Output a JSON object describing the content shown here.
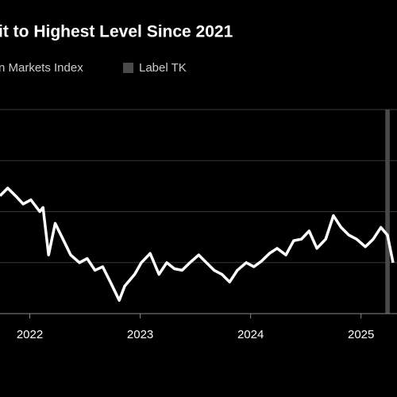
{
  "chart_data": {
    "type": "line",
    "title": "it to Highest Level Since 2021",
    "series": [
      {
        "name": "n Markets Index",
        "color": "#ffffff",
        "x": [
          2021.73,
          2021.8,
          2021.87,
          2021.94,
          2022.01,
          2022.09,
          2022.12,
          2022.17,
          2022.23,
          2022.3,
          2022.37,
          2022.45,
          2022.52,
          2022.59,
          2022.66,
          2022.73,
          2022.81,
          2022.86,
          2022.95,
          2023.01,
          2023.09,
          2023.17,
          2023.24,
          2023.31,
          2023.38,
          2023.45,
          2023.53,
          2023.6,
          2023.67,
          2023.74,
          2023.81,
          2023.88,
          2023.96,
          2024.03,
          2024.1,
          2024.17,
          2024.24,
          2024.32,
          2024.39,
          2024.46,
          2024.53,
          2024.6,
          2024.68,
          2024.75,
          2024.82,
          2024.89,
          2024.96,
          2025.04,
          2025.11,
          2025.18,
          2025.24,
          2025.29
        ],
        "values": [
          2.31,
          2.46,
          2.31,
          2.15,
          2.23,
          2.0,
          2.08,
          1.15,
          1.77,
          1.46,
          1.15,
          1.0,
          1.08,
          0.85,
          0.92,
          0.62,
          0.26,
          0.54,
          0.77,
          1.0,
          1.18,
          0.77,
          1.0,
          0.88,
          0.85,
          1.0,
          1.15,
          1.0,
          0.85,
          0.77,
          0.62,
          0.85,
          1.0,
          0.92,
          1.03,
          1.18,
          1.28,
          1.15,
          1.43,
          1.46,
          1.62,
          1.28,
          1.46,
          1.92,
          1.69,
          1.54,
          1.46,
          1.31,
          1.46,
          1.69,
          1.54,
          1.0
        ]
      }
    ],
    "highlight": {
      "name": "Label TK",
      "color": "#4a4a4a",
      "xrange": [
        2025.22,
        2025.26
      ]
    },
    "xlim": [
      2021.73,
      2025.29
    ],
    "xticks": [
      2022,
      2023,
      2024,
      2025
    ],
    "ylim": [
      0,
      4
    ],
    "grid_lines": [
      1,
      2,
      3,
      4
    ]
  }
}
